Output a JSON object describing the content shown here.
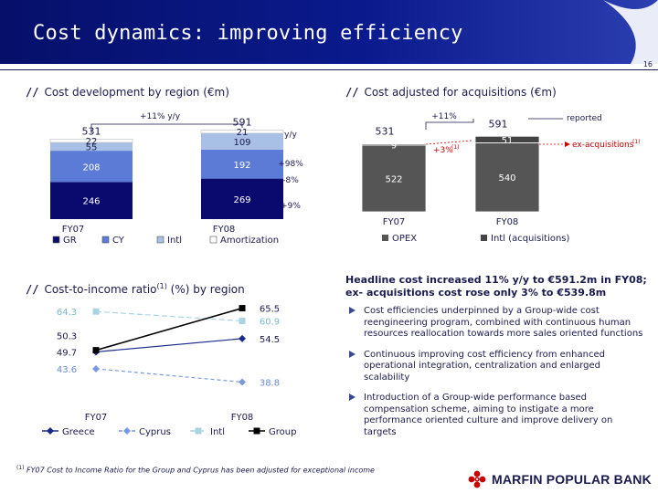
{
  "header": {
    "title": "Cost dynamics: improving efficiency",
    "page_number": "16"
  },
  "section1": {
    "slash": "//",
    "title": "Cost development by region (€m)"
  },
  "section2": {
    "slash": "//",
    "title": "Cost adjusted for acquisitions (€m)"
  },
  "section3": {
    "slash": "//",
    "title_main": "Cost-to-income ratio",
    "title_sup": "(1)",
    "title_rest": " (%) by region"
  },
  "colors": {
    "navy": "#0a0a6e",
    "blue": "#5b7bd6",
    "lightblue": "#a9c0e6",
    "grey": "#555555",
    "darkgrey": "#444444",
    "red": "#cc0000"
  },
  "chart_data": [
    {
      "type": "bar",
      "stacked": true,
      "categories": [
        "FY07",
        "FY08"
      ],
      "totals": [
        531,
        591
      ],
      "series": [
        {
          "name": "GR",
          "values": [
            246,
            269
          ],
          "color": "#0a0a6e"
        },
        {
          "name": "CY",
          "values": [
            208,
            192
          ],
          "color": "#5b7bd6"
        },
        {
          "name": "Intl",
          "values": [
            55,
            109
          ],
          "color": "#a9c0e6"
        },
        {
          "name": "Amortization",
          "values": [
            22,
            21
          ],
          "color": "#ffffff"
        }
      ],
      "annotations": {
        "total_change": "+11% y/y",
        "yy_header": "y/y",
        "changes": [
          "+98%",
          "-8%",
          "+9%"
        ]
      }
    },
    {
      "type": "bar",
      "stacked": true,
      "categories": [
        "FY07",
        "FY08"
      ],
      "totals": [
        531,
        591
      ],
      "series": [
        {
          "name": "OPEX",
          "values": [
            522,
            540
          ],
          "color": "#555555"
        },
        {
          "name": "Intl (acquisitions)",
          "values": [
            9,
            51
          ],
          "color": "#444444"
        }
      ],
      "annotations": {
        "reported_change": "+11%",
        "ex_acq_change": "+3%",
        "ex_acq_sup": "(1)",
        "reported_label": "reported",
        "ex_acq_label": "ex-acquisitions",
        "ex_acq_label_sup": "(1)"
      }
    },
    {
      "type": "line",
      "categories": [
        "FY07",
        "FY08"
      ],
      "series": [
        {
          "name": "Greece",
          "values": [
            49.7,
            54.5
          ],
          "labels": [
            "49.7",
            "54.5"
          ],
          "color": "#1a2a8a"
        },
        {
          "name": "Cyprus",
          "values": [
            43.6,
            38.8
          ],
          "labels": [
            "43.6",
            "38.8"
          ],
          "color": "#7a9ae0"
        },
        {
          "name": "Intl",
          "values": [
            64.3,
            60.9
          ],
          "labels": [
            "64.3",
            "60.9"
          ],
          "color": "#a9d4e6"
        },
        {
          "name": "Group",
          "values": [
            50.3,
            65.5
          ],
          "labels": [
            "50.3",
            "65.5"
          ],
          "color": "#000000"
        }
      ]
    }
  ],
  "headline": "Headline cost increased 11% y/y to €591.2m in FY08; ex- acquisitions cost rose only 3% to €539.8m",
  "bullets": [
    "Cost efficiencies underpinned by a Group-wide cost reengineering program, combined with continuous human resources reallocation towards more sales oriented functions",
    "Continuous improving cost efficiency from enhanced operational integration, centralization and enlarged scalability",
    "Introduction of a Group-wide performance based compensation scheme, aiming to instigate a more performance oriented culture and improve delivery on targets"
  ],
  "footnote": {
    "sup": "(1)",
    "text": " FY07 Cost to Income Ratio for the Group and Cyprus has been adjusted for exceptional income"
  },
  "logo": {
    "text": "MARFIN POPULAR BANK",
    "icon": "marfin-logo-icon"
  }
}
